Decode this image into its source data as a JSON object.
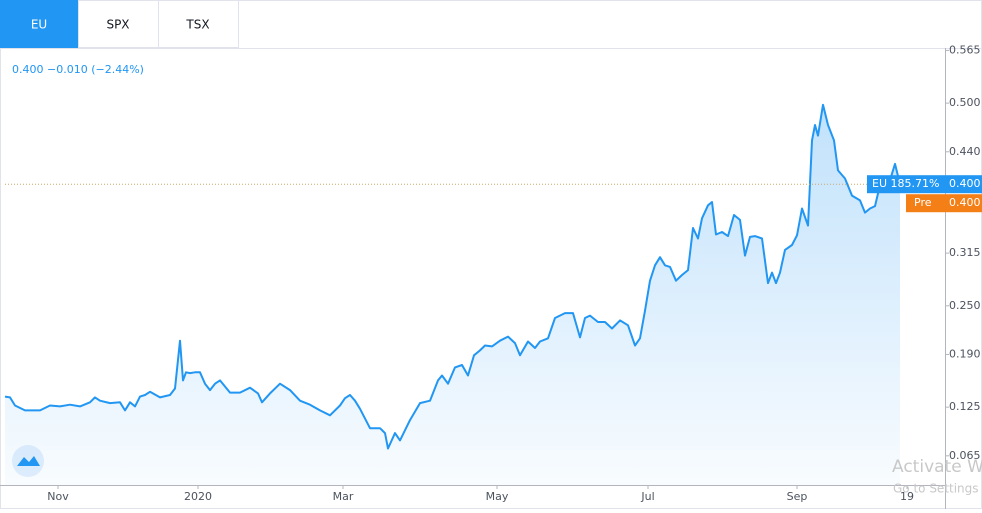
{
  "tabs": [
    "EU",
    "SPX",
    "TSX"
  ],
  "chart_data": {
    "type": "line",
    "subtitle": "0.400 −0.010 (−2.44%)",
    "color": "#2196f3",
    "x": [
      0,
      5,
      10,
      20,
      35,
      45,
      55,
      65,
      75,
      85,
      90,
      95,
      105,
      115,
      120,
      125,
      130,
      135,
      140,
      145,
      155,
      165,
      170,
      175,
      178,
      181,
      185,
      190,
      195,
      200,
      205,
      210,
      215,
      225,
      235,
      245,
      253,
      257,
      265,
      275,
      285,
      295,
      305,
      315,
      325,
      335,
      340,
      345,
      350,
      355,
      365,
      375,
      380,
      383,
      390,
      395,
      405,
      415,
      425,
      433,
      437,
      443,
      450,
      457,
      463,
      469,
      475,
      480,
      487,
      495,
      503,
      510,
      515,
      523,
      530,
      535,
      543,
      550,
      560,
      568,
      575,
      580,
      585,
      593,
      600,
      607,
      615,
      623,
      630,
      635,
      640,
      645,
      650,
      655,
      660,
      665,
      671,
      677,
      683,
      688,
      693,
      697,
      703,
      707,
      711,
      717,
      723,
      729,
      735,
      740,
      745,
      750,
      757,
      763,
      767,
      771,
      775,
      780,
      787,
      792,
      797,
      803,
      807,
      810,
      813,
      818,
      823,
      829,
      833,
      840,
      847,
      855,
      860,
      865,
      870,
      875,
      880,
      885,
      890,
      895
    ],
    "values": [
      0.138,
      0.137,
      0.127,
      0.121,
      0.121,
      0.127,
      0.126,
      0.128,
      0.126,
      0.131,
      0.137,
      0.133,
      0.13,
      0.131,
      0.121,
      0.131,
      0.126,
      0.138,
      0.14,
      0.144,
      0.137,
      0.14,
      0.148,
      0.207,
      0.158,
      0.168,
      0.167,
      0.168,
      0.168,
      0.154,
      0.146,
      0.154,
      0.158,
      0.143,
      0.143,
      0.149,
      0.142,
      0.131,
      0.142,
      0.154,
      0.146,
      0.133,
      0.128,
      0.121,
      0.115,
      0.127,
      0.136,
      0.14,
      0.133,
      0.123,
      0.099,
      0.099,
      0.093,
      0.074,
      0.093,
      0.084,
      0.109,
      0.13,
      0.133,
      0.158,
      0.164,
      0.154,
      0.174,
      0.177,
      0.164,
      0.189,
      0.195,
      0.201,
      0.2,
      0.207,
      0.212,
      0.204,
      0.189,
      0.206,
      0.198,
      0.206,
      0.21,
      0.235,
      0.241,
      0.241,
      0.211,
      0.235,
      0.238,
      0.23,
      0.23,
      0.222,
      0.232,
      0.226,
      0.201,
      0.21,
      0.244,
      0.281,
      0.3,
      0.31,
      0.3,
      0.298,
      0.281,
      0.288,
      0.294,
      0.346,
      0.333,
      0.358,
      0.374,
      0.378,
      0.338,
      0.341,
      0.336,
      0.362,
      0.356,
      0.312,
      0.335,
      0.336,
      0.333,
      0.278,
      0.291,
      0.278,
      0.291,
      0.319,
      0.325,
      0.337,
      0.37,
      0.349,
      0.454,
      0.473,
      0.46,
      0.498,
      0.473,
      0.454,
      0.417,
      0.407,
      0.386,
      0.38,
      0.365,
      0.37,
      0.373,
      0.399,
      0.405,
      0.405,
      0.425,
      0.4
    ],
    "last_price": {
      "text": "EU 185.71%",
      "value": 0.4,
      "label": "0.400"
    },
    "pre_price": {
      "text": "Pre",
      "value": 0.4,
      "label": "0.400"
    },
    "xlim": [
      0,
      940
    ],
    "ylim": [
      0.029,
      0.568
    ],
    "yticks": [
      0.565,
      {
        "value": 0.5,
        "label": "0.500"
      },
      {
        "value": 0.44,
        "label": "0.440"
      },
      0.315,
      {
        "value": 0.25,
        "label": "0.250"
      },
      {
        "value": 0.19,
        "label": "0.190"
      },
      0.125,
      0.065
    ],
    "xticks": [
      {
        "value": 53,
        "label": "Nov"
      },
      {
        "value": 193,
        "label": "2020"
      },
      {
        "value": 338,
        "label": "Mar"
      },
      {
        "value": 492,
        "label": "May"
      },
      {
        "value": 643,
        "label": "Jul"
      },
      {
        "value": 792,
        "label": "Sep"
      },
      {
        "value": 902,
        "label": "19"
      }
    ]
  },
  "watermark": {
    "title": "Activate W",
    "subtitle": "Go to Settings"
  }
}
